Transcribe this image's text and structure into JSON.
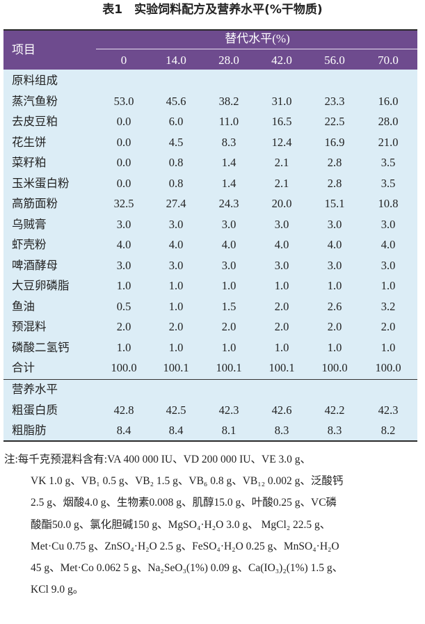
{
  "title": "表1　实验饲料配方及营养水平(%干物质)",
  "table": {
    "header": {
      "item": "项目",
      "group": "替代水平(%)",
      "levels": [
        "0",
        "14.0",
        "28.0",
        "42.0",
        "56.0",
        "70.0"
      ]
    },
    "sections": [
      {
        "name": "原料组成",
        "rows": [
          {
            "label": "蒸汽鱼粉",
            "values": [
              "53.0",
              "45.6",
              "38.2",
              "31.0",
              "23.3",
              "16.0"
            ]
          },
          {
            "label": "去皮豆粕",
            "values": [
              "0.0",
              "6.0",
              "11.0",
              "16.5",
              "22.5",
              "28.0"
            ]
          },
          {
            "label": "花生饼",
            "values": [
              "0.0",
              "4.5",
              "8.3",
              "12.4",
              "16.9",
              "21.0"
            ]
          },
          {
            "label": "菜籽粕",
            "values": [
              "0.0",
              "0.8",
              "1.4",
              "2.1",
              "2.8",
              "3.5"
            ]
          },
          {
            "label": "玉米蛋白粉",
            "values": [
              "0.0",
              "0.8",
              "1.4",
              "2.1",
              "2.8",
              "3.5"
            ]
          },
          {
            "label": "高筋面粉",
            "values": [
              "32.5",
              "27.4",
              "24.3",
              "20.0",
              "15.1",
              "10.8"
            ]
          },
          {
            "label": "乌贼膏",
            "values": [
              "3.0",
              "3.0",
              "3.0",
              "3.0",
              "3.0",
              "3.0"
            ]
          },
          {
            "label": "虾壳粉",
            "values": [
              "4.0",
              "4.0",
              "4.0",
              "4.0",
              "4.0",
              "4.0"
            ]
          },
          {
            "label": "啤酒酵母",
            "values": [
              "3.0",
              "3.0",
              "3.0",
              "3.0",
              "3.0",
              "3.0"
            ]
          },
          {
            "label": "大豆卵磷脂",
            "values": [
              "1.0",
              "1.0",
              "1.0",
              "1.0",
              "1.0",
              "1.0"
            ]
          },
          {
            "label": "鱼油",
            "values": [
              "0.5",
              "1.0",
              "1.5",
              "2.0",
              "2.6",
              "3.2"
            ]
          },
          {
            "label": "预混料",
            "values": [
              "2.0",
              "2.0",
              "2.0",
              "2.0",
              "2.0",
              "2.0"
            ]
          },
          {
            "label": "磷酸二氢钙",
            "values": [
              "1.0",
              "1.0",
              "1.0",
              "1.0",
              "1.0",
              "1.0"
            ]
          },
          {
            "label": "合计",
            "values": [
              "100.0",
              "100.1",
              "100.1",
              "100.1",
              "100.0",
              "100.0"
            ]
          }
        ]
      },
      {
        "name": "营养水平",
        "rows": [
          {
            "label": "粗蛋白质",
            "values": [
              "42.8",
              "42.5",
              "42.3",
              "42.6",
              "42.2",
              "42.3"
            ]
          },
          {
            "label": "粗脂肪",
            "values": [
              "8.4",
              "8.4",
              "8.1",
              "8.3",
              "8.3",
              "8.2"
            ]
          }
        ]
      }
    ]
  },
  "note": [
    "注:每千克预混料含有:VA 400 000 IU、VD 200 000 IU、VE 3.0 g、",
    "VK 1.0 g、VB₁ 0.5 g、VB₂ 1.5 g、VB₆ 0.8 g、VB₁₂ 0.002 g、泛酸钙",
    "2.5 g、烟酸4.0 g、生物素0.008 g、肌醇15.0 g、叶酸0.25 g、VC磷",
    "酸酯50.0 g、氯化胆碱150 g、MgSO₄·H₂O 3.0 g、 MgCl₂ 22.5 g、",
    "Met·Cu 0.75 g、ZnSO₄·H₂O 2.5 g、FeSO₄·H₂O 0.25 g、MnSO₄·H₂O",
    "45 g、Met·Co 0.062 5 g、Na₂SeO₃(1%) 0.09 g、Ca(IO₃)₂(1%) 1.5 g、",
    "KCl 9.0 g。"
  ]
}
